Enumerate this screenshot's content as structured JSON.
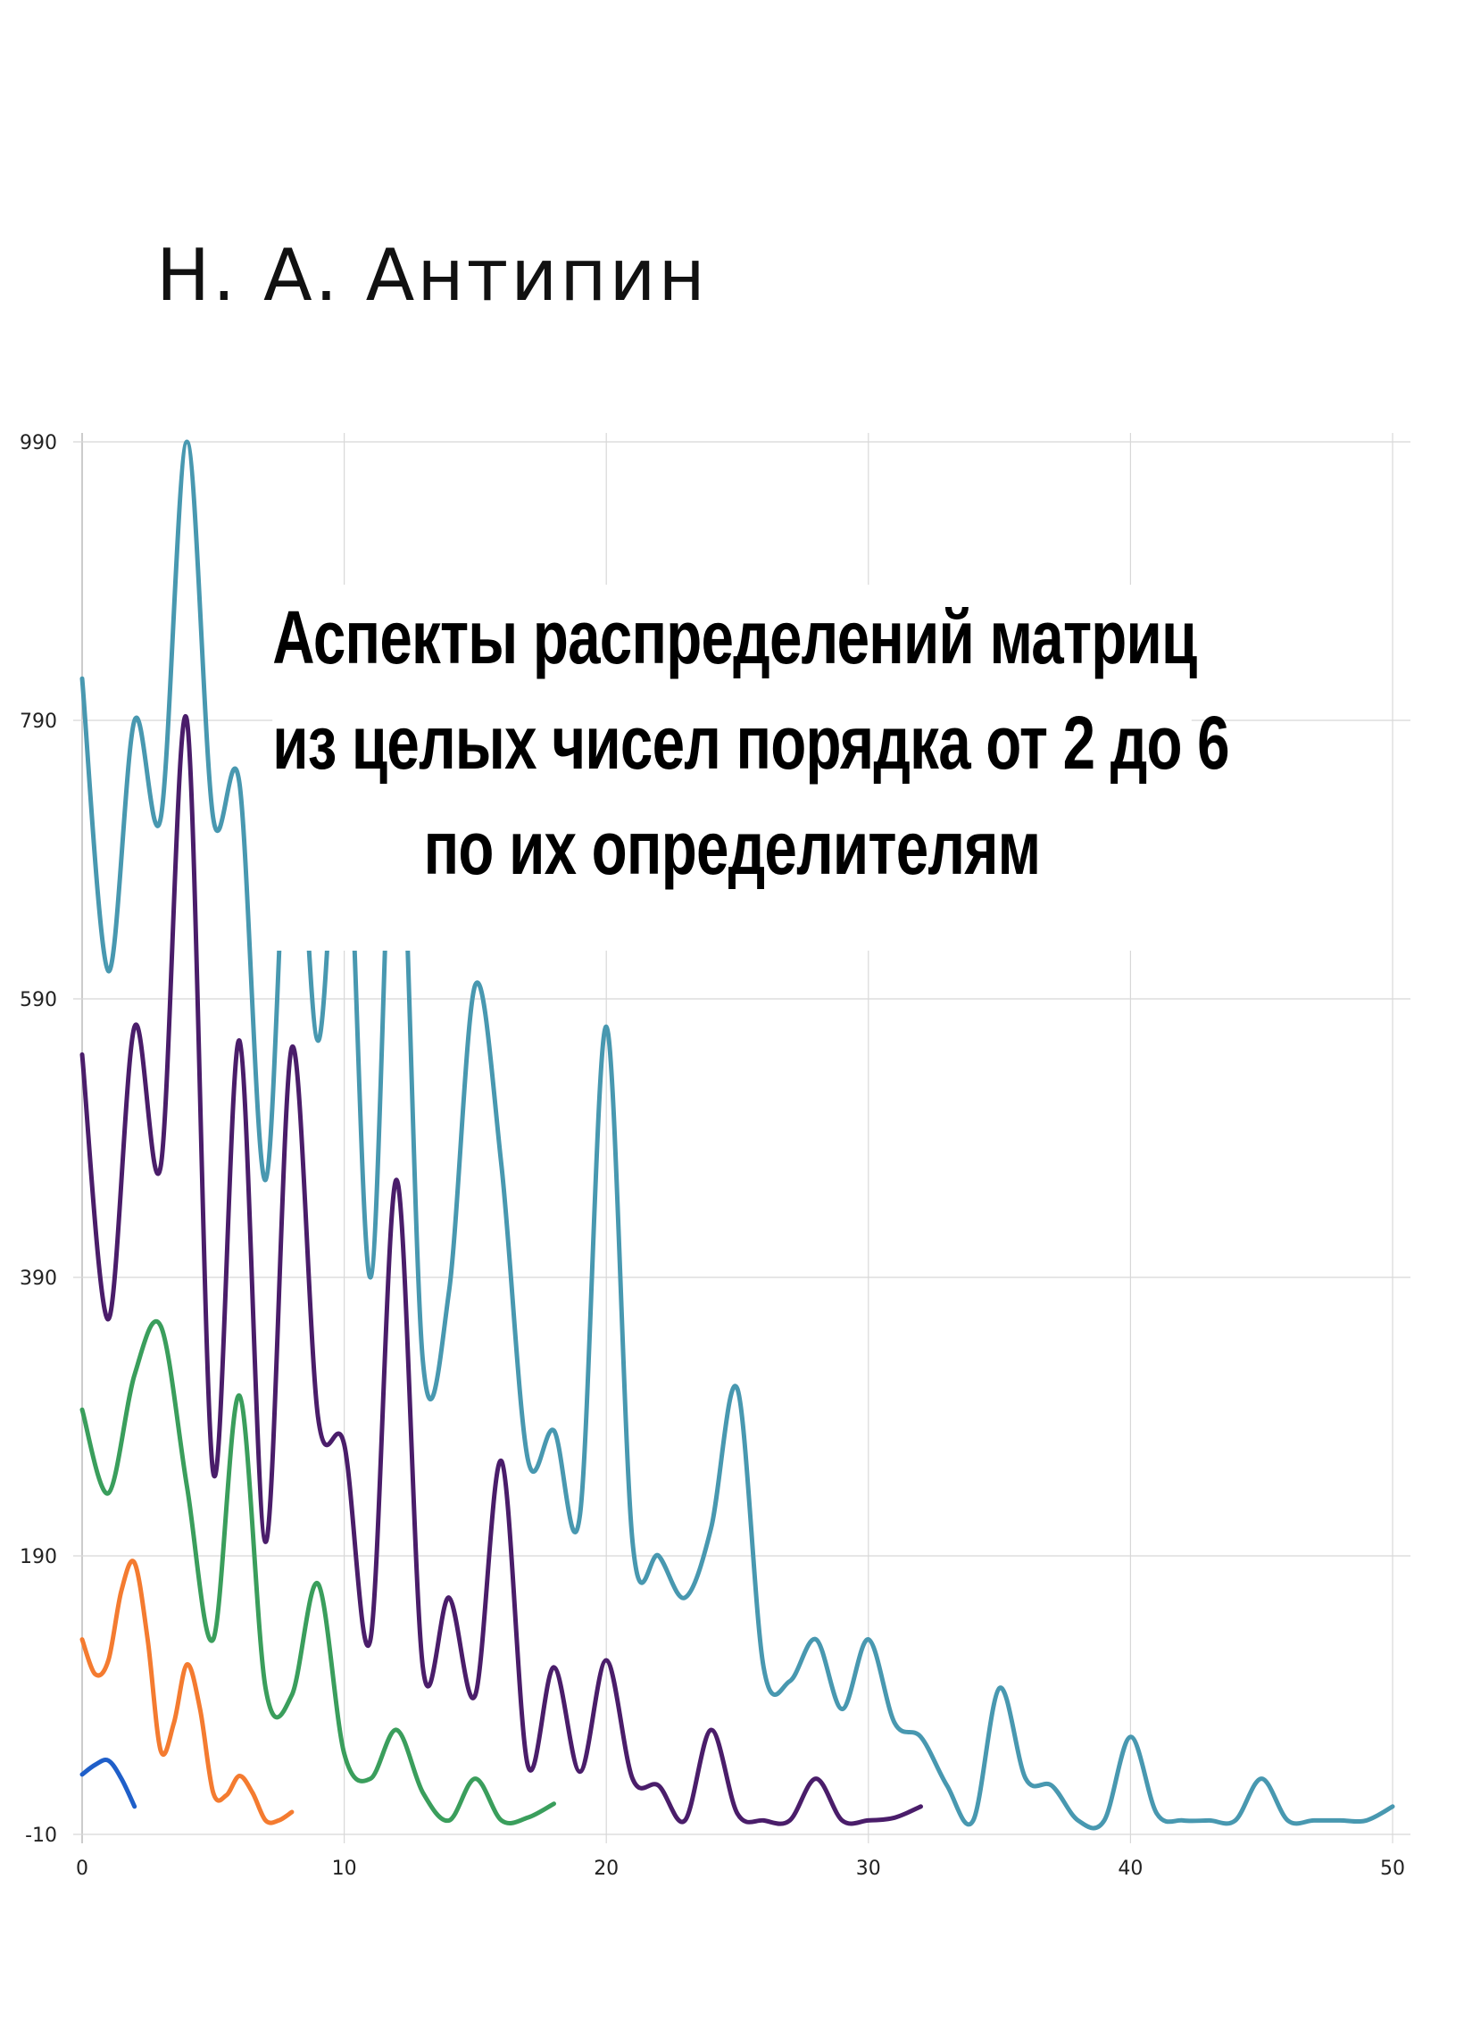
{
  "author": "Н. А. Антипин",
  "title_lines": [
    "Аспекты распределений матриц",
    "из целых чисел порядка от 2 до 6",
    "по их определителям"
  ],
  "chart_data": {
    "type": "line",
    "title": "",
    "xlabel": "",
    "ylabel": "",
    "xlim": [
      0,
      50
    ],
    "ylim": [
      -10,
      990
    ],
    "x_ticks": [
      0,
      10,
      20,
      30,
      40,
      50
    ],
    "y_ticks": [
      -10,
      190,
      390,
      590,
      790,
      990
    ],
    "grid": true,
    "series": [
      {
        "color": "#1f5fc9",
        "x": [
          0,
          0.5,
          1,
          1.5,
          2
        ],
        "y": [
          33,
          40,
          43,
          30,
          10
        ]
      },
      {
        "color": "#f47b30",
        "x": [
          0,
          0.5,
          1,
          1.5,
          2,
          2.5,
          3,
          3.5,
          4,
          4.5,
          5,
          5.5,
          6,
          6.5,
          7,
          7.5,
          8
        ],
        "y": [
          130,
          105,
          115,
          165,
          185,
          130,
          50,
          70,
          112,
          80,
          20,
          18,
          32,
          20,
          0,
          0,
          6
        ]
      },
      {
        "color": "#3a9e5c",
        "x": [
          0,
          1,
          2,
          3,
          4,
          5,
          6,
          7,
          8,
          9,
          10,
          11,
          12,
          13,
          14,
          15,
          16,
          17,
          18
        ],
        "y": [
          295,
          235,
          320,
          355,
          240,
          130,
          305,
          95,
          90,
          170,
          48,
          30,
          65,
          20,
          0,
          30,
          0,
          2,
          12
        ]
      },
      {
        "color": "#4a1d6a",
        "x": [
          0,
          1,
          2,
          3,
          4,
          5,
          6,
          7,
          8,
          9,
          10,
          11,
          12,
          13,
          14,
          15,
          16,
          17,
          18,
          19,
          20,
          21,
          22,
          23,
          24,
          25,
          26,
          27,
          28,
          29,
          30,
          31,
          32
        ],
        "y": [
          550,
          360,
          570,
          470,
          790,
          250,
          560,
          200,
          555,
          290,
          270,
          130,
          460,
          110,
          160,
          90,
          258,
          40,
          110,
          35,
          115,
          30,
          25,
          0,
          65,
          5,
          0,
          0,
          30,
          0,
          0,
          2,
          10
        ]
      },
      {
        "color": "#4898b0",
        "x": [
          0,
          1,
          2,
          3,
          4,
          5,
          6,
          7,
          8,
          9,
          10,
          11,
          12,
          13,
          14,
          15,
          16,
          17,
          18,
          19,
          20,
          21,
          22,
          23,
          24,
          25,
          26,
          27,
          28,
          29,
          30,
          31,
          32,
          33,
          34,
          35,
          36,
          37,
          38,
          39,
          40,
          41,
          42,
          43,
          44,
          45,
          46,
          47,
          48,
          49,
          50
        ],
        "y": [
          820,
          610,
          790,
          720,
          990,
          720,
          745,
          460,
          780,
          560,
          770,
          390,
          785,
          330,
          380,
          600,
          470,
          260,
          280,
          220,
          570,
          200,
          190,
          160,
          210,
          310,
          110,
          100,
          130,
          80,
          130,
          70,
          60,
          25,
          0,
          95,
          30,
          25,
          0,
          0,
          60,
          5,
          0,
          0,
          0,
          30,
          0,
          0,
          0,
          0,
          10
        ]
      }
    ]
  }
}
